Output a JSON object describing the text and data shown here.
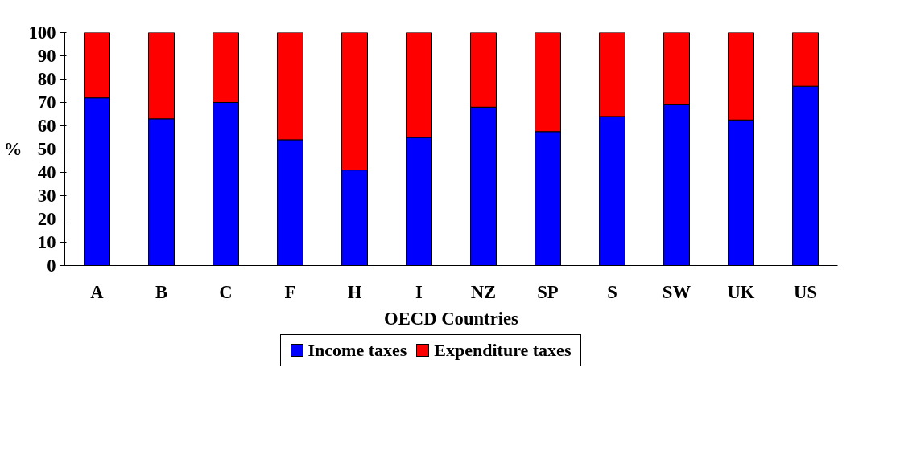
{
  "chart_data": {
    "type": "bar",
    "stacked": true,
    "xlabel": "OECD Countries",
    "ylabel": "%",
    "categories": [
      "A",
      "B",
      "C",
      "F",
      "H",
      "I",
      "NZ",
      "SP",
      "S",
      "SW",
      "UK",
      "US"
    ],
    "series": [
      {
        "name": "Income taxes",
        "color": "#0000ff",
        "values": [
          72,
          63,
          70,
          54,
          41,
          55,
          68,
          57.5,
          64,
          69,
          62.5,
          77
        ]
      },
      {
        "name": "Expenditure taxes",
        "color": "#ff0000",
        "values": [
          28,
          37,
          30,
          46,
          59,
          45,
          32,
          42.5,
          36,
          31,
          37.5,
          23
        ]
      }
    ],
    "ylim": [
      0,
      100
    ],
    "yticks": [
      0,
      10,
      20,
      30,
      40,
      50,
      60,
      70,
      80,
      90,
      100
    ],
    "grid": false,
    "legend": "bottom"
  }
}
